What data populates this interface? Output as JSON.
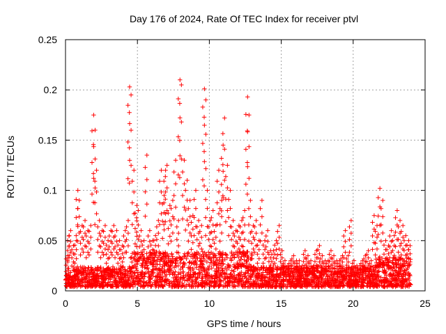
{
  "chart_data": {
    "type": "scatter",
    "title": "Day 176 of 2024, Rate Of TEC Index for receiver ptvl",
    "xlabel": "GPS time / hours",
    "ylabel": "ROTI / TECUs",
    "xlim": [
      0,
      25
    ],
    "ylim": [
      0,
      0.25
    ],
    "x_ticks": [
      0,
      5,
      10,
      15,
      20,
      25
    ],
    "x_tick_labels": [
      "0",
      "5",
      "10",
      "15",
      "20",
      "25"
    ],
    "y_ticks": [
      0,
      0.05,
      0.1,
      0.15,
      0.2,
      0.25
    ],
    "y_tick_labels": [
      "0",
      "0.05",
      "0.1",
      "0.15",
      "0.2",
      "0.25"
    ],
    "grid": true,
    "marker": "plus",
    "series": [
      {
        "name": "ROTI",
        "color": "#ff0000",
        "x": [
          0.1,
          0.2,
          0.3,
          0.5,
          0.7,
          0.8,
          0.9,
          1.1,
          1.3,
          1.5,
          1.7,
          1.9,
          2.0,
          2.1,
          2.3,
          2.5,
          2.7,
          2.9,
          3.1,
          3.3,
          3.5,
          3.7,
          3.9,
          4.1,
          4.3,
          4.4,
          4.5,
          4.7,
          4.9,
          5.0,
          5.2,
          5.4,
          5.6,
          5.8,
          6.0,
          6.2,
          6.4,
          6.6,
          6.8,
          6.9,
          7.0,
          7.2,
          7.4,
          7.6,
          7.8,
          7.9,
          8.0,
          8.2,
          8.4,
          8.6,
          8.8,
          9.0,
          9.2,
          9.4,
          9.6,
          9.7,
          9.8,
          10.0,
          10.2,
          10.4,
          10.6,
          10.8,
          10.9,
          11.0,
          11.2,
          11.4,
          11.6,
          11.8,
          12.0,
          12.2,
          12.4,
          12.6,
          12.7,
          12.8,
          13.0,
          13.2,
          13.4,
          13.6,
          13.8,
          14.0,
          14.2,
          14.4,
          14.6,
          14.8,
          15.0,
          15.2,
          15.4,
          15.6,
          15.8,
          16.0,
          16.2,
          16.4,
          16.6,
          16.8,
          17.0,
          17.2,
          17.4,
          17.6,
          17.8,
          18.0,
          18.2,
          18.4,
          18.6,
          18.8,
          19.0,
          19.2,
          19.4,
          19.6,
          19.8,
          20.0,
          20.2,
          20.4,
          20.6,
          20.8,
          21.0,
          21.2,
          21.4,
          21.6,
          21.8,
          22.0,
          22.2,
          22.4,
          22.6,
          22.8,
          23.0,
          23.2,
          23.4,
          23.6,
          23.8,
          23.9
        ],
        "y": [
          0.035,
          0.055,
          0.06,
          0.045,
          0.05,
          0.1,
          0.09,
          0.065,
          0.07,
          0.06,
          0.065,
          0.175,
          0.16,
          0.12,
          0.07,
          0.06,
          0.065,
          0.05,
          0.06,
          0.065,
          0.06,
          0.05,
          0.045,
          0.06,
          0.07,
          0.203,
          0.195,
          0.12,
          0.085,
          0.08,
          0.06,
          0.05,
          0.135,
          0.06,
          0.05,
          0.055,
          0.07,
          0.12,
          0.095,
          0.12,
          0.125,
          0.085,
          0.09,
          0.13,
          0.07,
          0.21,
          0.205,
          0.13,
          0.11,
          0.09,
          0.075,
          0.1,
          0.07,
          0.065,
          0.201,
          0.19,
          0.1,
          0.07,
          0.08,
          0.065,
          0.12,
          0.09,
          0.145,
          0.172,
          0.125,
          0.1,
          0.07,
          0.06,
          0.065,
          0.07,
          0.08,
          0.193,
          0.175,
          0.09,
          0.065,
          0.07,
          0.05,
          0.09,
          0.05,
          0.06,
          0.04,
          0.04,
          0.05,
          0.065,
          0.04,
          0.03,
          0.025,
          0.03,
          0.035,
          0.03,
          0.03,
          0.025,
          0.04,
          0.035,
          0.03,
          0.025,
          0.04,
          0.045,
          0.035,
          0.03,
          0.03,
          0.04,
          0.035,
          0.03,
          0.03,
          0.035,
          0.06,
          0.035,
          0.07,
          0.03,
          0.025,
          0.025,
          0.03,
          0.035,
          0.04,
          0.03,
          0.075,
          0.065,
          0.102,
          0.09,
          0.05,
          0.045,
          0.06,
          0.055,
          0.08,
          0.07,
          0.065,
          0.055,
          0.05,
          0.045
        ]
      }
    ],
    "description_noise_band": "dense cloud of points between 0 and ~0.03 across 0–24 h"
  }
}
